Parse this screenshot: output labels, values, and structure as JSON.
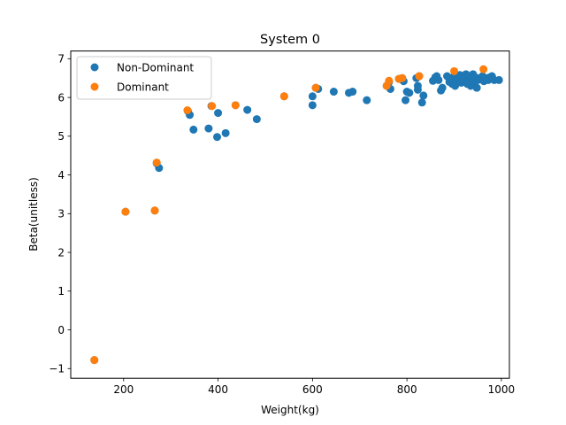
{
  "chart_data": {
    "type": "scatter",
    "title": "System 0",
    "xlabel": "Weight(kg)",
    "ylabel": "Beta(unitless)",
    "xlim": [
      88,
      1017
    ],
    "ylim": [
      -1.25,
      7.2
    ],
    "xticks": [
      200,
      400,
      600,
      800,
      1000
    ],
    "yticks": [
      -1,
      0,
      1,
      2,
      3,
      4,
      5,
      6,
      7
    ],
    "grid": false,
    "legend_position": "top-left",
    "series": [
      {
        "name": "Non-Dominant",
        "color": "#1f77b4",
        "points": [
          [
            138,
            -0.78
          ],
          [
            204,
            3.05
          ],
          [
            266,
            3.08
          ],
          [
            270,
            4.3
          ],
          [
            275,
            4.18
          ],
          [
            336,
            5.65
          ],
          [
            340,
            5.55
          ],
          [
            348,
            5.17
          ],
          [
            380,
            5.2
          ],
          [
            386,
            5.78
          ],
          [
            398,
            4.98
          ],
          [
            400,
            5.6
          ],
          [
            416,
            5.08
          ],
          [
            437,
            5.8
          ],
          [
            462,
            5.68
          ],
          [
            482,
            5.44
          ],
          [
            540,
            6.03
          ],
          [
            600,
            5.8
          ],
          [
            600,
            6.03
          ],
          [
            607,
            6.25
          ],
          [
            612,
            6.22
          ],
          [
            645,
            6.15
          ],
          [
            677,
            6.12
          ],
          [
            685,
            6.15
          ],
          [
            715,
            5.93
          ],
          [
            757,
            6.3
          ],
          [
            762,
            6.4
          ],
          [
            765,
            6.22
          ],
          [
            783,
            6.48
          ],
          [
            790,
            6.5
          ],
          [
            793,
            6.42
          ],
          [
            797,
            5.93
          ],
          [
            800,
            6.15
          ],
          [
            805,
            6.12
          ],
          [
            820,
            6.5
          ],
          [
            823,
            6.2
          ],
          [
            823,
            6.3
          ],
          [
            826,
            6.55
          ],
          [
            832,
            5.87
          ],
          [
            835,
            6.05
          ],
          [
            855,
            6.43
          ],
          [
            860,
            6.52
          ],
          [
            863,
            6.55
          ],
          [
            867,
            6.45
          ],
          [
            872,
            6.18
          ],
          [
            875,
            6.25
          ],
          [
            885,
            6.55
          ],
          [
            890,
            6.4
          ],
          [
            893,
            6.5
          ],
          [
            896,
            6.35
          ],
          [
            898,
            6.45
          ],
          [
            900,
            6.55
          ],
          [
            902,
            6.3
          ],
          [
            905,
            6.5
          ],
          [
            908,
            6.42
          ],
          [
            910,
            6.48
          ],
          [
            912,
            6.58
          ],
          [
            915,
            6.38
          ],
          [
            917,
            6.45
          ],
          [
            920,
            6.52
          ],
          [
            922,
            6.4
          ],
          [
            925,
            6.6
          ],
          [
            928,
            6.35
          ],
          [
            930,
            6.45
          ],
          [
            933,
            6.55
          ],
          [
            935,
            6.3
          ],
          [
            938,
            6.48
          ],
          [
            940,
            6.6
          ],
          [
            943,
            6.4
          ],
          [
            945,
            6.52
          ],
          [
            948,
            6.25
          ],
          [
            950,
            6.45
          ],
          [
            955,
            6.5
          ],
          [
            960,
            6.55
          ],
          [
            963,
            6.42
          ],
          [
            968,
            6.5
          ],
          [
            972,
            6.45
          ],
          [
            975,
            6.52
          ],
          [
            980,
            6.55
          ],
          [
            985,
            6.45
          ],
          [
            995,
            6.45
          ]
        ]
      },
      {
        "name": "Dominant",
        "color": "#ff7f0e",
        "points": [
          [
            138,
            -0.78
          ],
          [
            204,
            3.05
          ],
          [
            266,
            3.08
          ],
          [
            270,
            4.32
          ],
          [
            335,
            5.67
          ],
          [
            387,
            5.78
          ],
          [
            437,
            5.8
          ],
          [
            540,
            6.03
          ],
          [
            607,
            6.25
          ],
          [
            757,
            6.3
          ],
          [
            762,
            6.43
          ],
          [
            783,
            6.48
          ],
          [
            790,
            6.5
          ],
          [
            826,
            6.55
          ],
          [
            900,
            6.68
          ],
          [
            962,
            6.73
          ]
        ]
      }
    ]
  }
}
